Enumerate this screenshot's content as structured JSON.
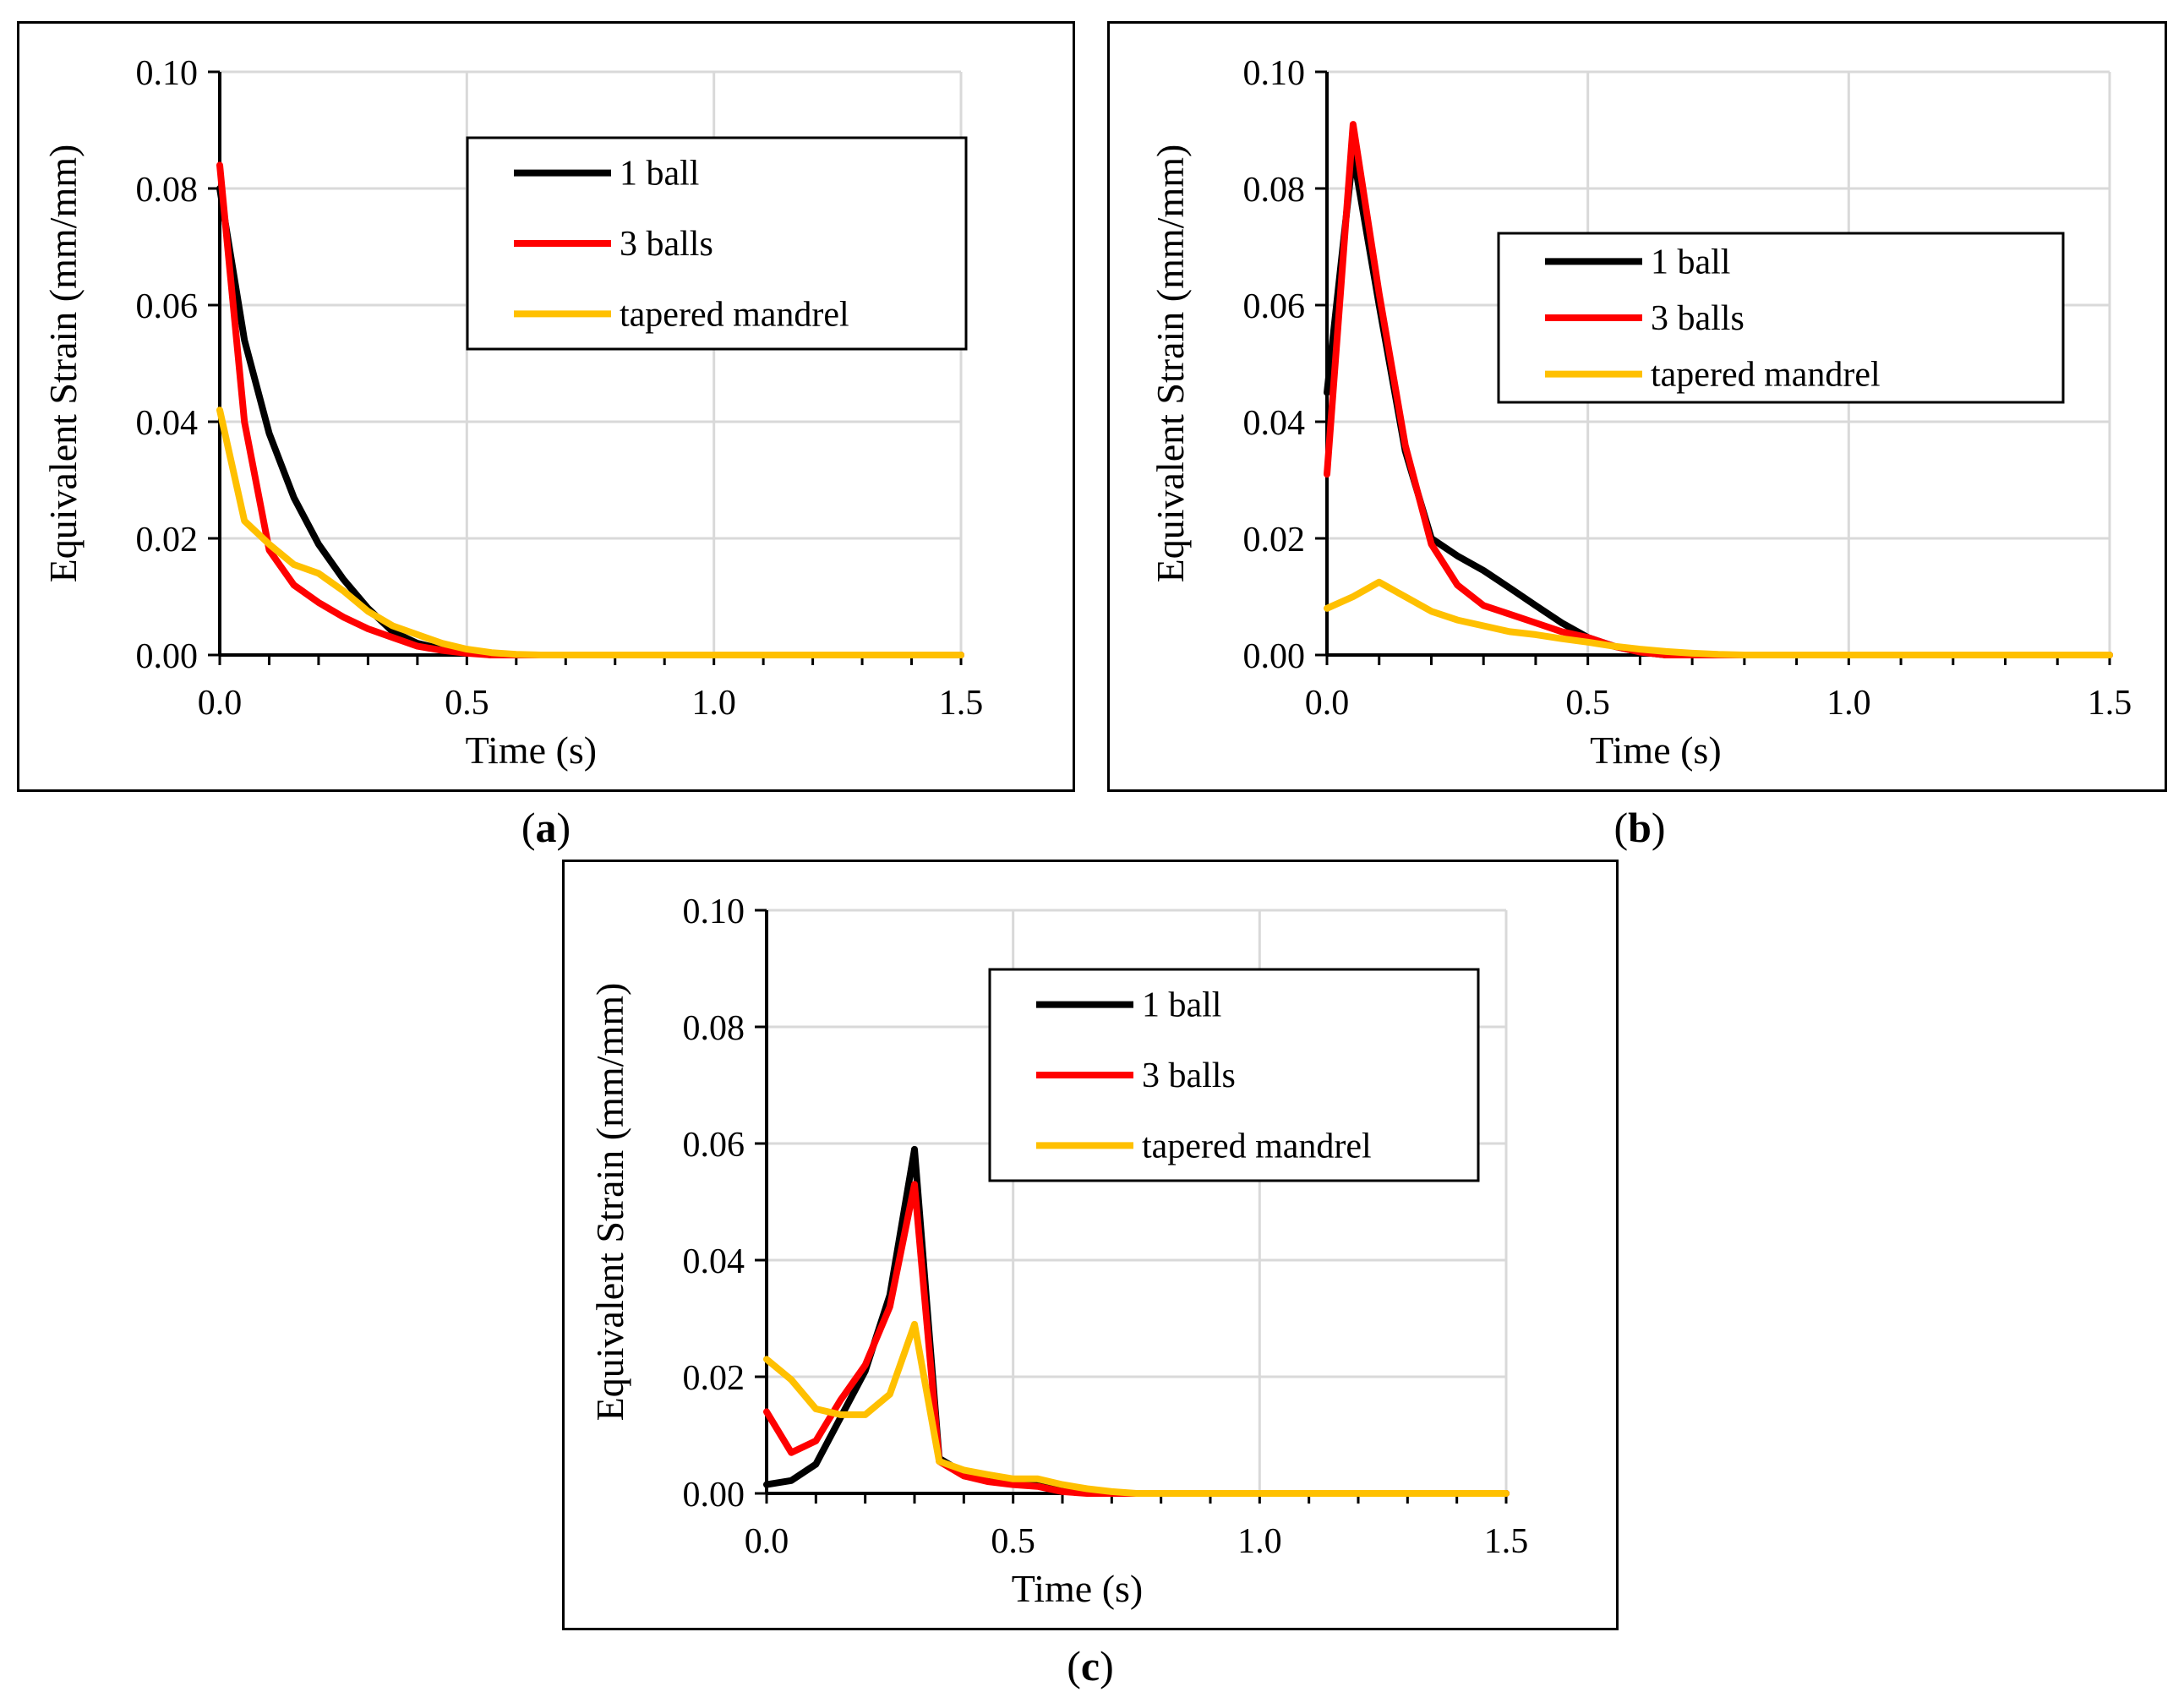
{
  "colors": {
    "one_ball": "#000000",
    "three_balls": "#ff0000",
    "tapered": "#ffc000",
    "grid": "#d9d9d9"
  },
  "chart_data": [
    {
      "id": "a",
      "type": "line",
      "caption_open": "(",
      "caption_letter": "a",
      "caption_close": ")",
      "xlabel": "Time (s)",
      "ylabel": "Equivalent Strain (mm/mm)",
      "xlim": [
        0,
        1.5
      ],
      "ylim": [
        0,
        0.1
      ],
      "xticks": [
        "0.0",
        "0.5",
        "1.0",
        "1.5"
      ],
      "yticks": [
        "0.00",
        "0.02",
        "0.04",
        "0.06",
        "0.08",
        "0.10"
      ],
      "legend": "top-right",
      "series": [
        {
          "name": "1 ball",
          "color": "#000000",
          "x": [
            0,
            0.05,
            0.1,
            0.15,
            0.2,
            0.25,
            0.3,
            0.35,
            0.4,
            0.45,
            0.5,
            0.55,
            0.6,
            0.65,
            0.7,
            0.75,
            0.8,
            0.85,
            0.9,
            0.95,
            1.0,
            1.05,
            1.1,
            1.15,
            1.2,
            1.25,
            1.3,
            1.35,
            1.4,
            1.45,
            1.5
          ],
          "y": [
            0.08,
            0.054,
            0.038,
            0.027,
            0.019,
            0.013,
            0.008,
            0.004,
            0.002,
            0.001,
            0.0005,
            0,
            0,
            0,
            0,
            0,
            0,
            0,
            0,
            0,
            0,
            0,
            0,
            0,
            0,
            0,
            0,
            0,
            0,
            0,
            0
          ]
        },
        {
          "name": "3 balls",
          "color": "#ff0000",
          "x": [
            0,
            0.05,
            0.1,
            0.15,
            0.2,
            0.25,
            0.3,
            0.35,
            0.4,
            0.45,
            0.5,
            0.55,
            0.6,
            0.65,
            0.7,
            0.75,
            0.8,
            0.85,
            0.9,
            0.95,
            1.0,
            1.05,
            1.1,
            1.15,
            1.2,
            1.25,
            1.3,
            1.35,
            1.4,
            1.45,
            1.5
          ],
          "y": [
            0.084,
            0.04,
            0.018,
            0.012,
            0.009,
            0.0065,
            0.0045,
            0.003,
            0.0015,
            0.0008,
            0.0003,
            0,
            0,
            0,
            0,
            0,
            0,
            0,
            0,
            0,
            0,
            0,
            0,
            0,
            0,
            0,
            0,
            0,
            0,
            0,
            0
          ]
        },
        {
          "name": "tapered mandrel",
          "color": "#ffc000",
          "x": [
            0,
            0.05,
            0.1,
            0.15,
            0.2,
            0.25,
            0.3,
            0.35,
            0.4,
            0.45,
            0.5,
            0.55,
            0.6,
            0.65,
            0.7,
            0.75,
            0.8,
            0.85,
            0.9,
            0.95,
            1.0,
            1.05,
            1.1,
            1.15,
            1.2,
            1.25,
            1.3,
            1.35,
            1.4,
            1.45,
            1.5
          ],
          "y": [
            0.042,
            0.023,
            0.019,
            0.0155,
            0.014,
            0.011,
            0.0075,
            0.005,
            0.0035,
            0.002,
            0.001,
            0.0004,
            0.0001,
            0,
            0,
            0,
            0,
            0,
            0,
            0,
            0,
            0,
            0,
            0,
            0,
            0,
            0,
            0,
            0,
            0,
            0
          ]
        }
      ]
    },
    {
      "id": "b",
      "type": "line",
      "caption_open": "(",
      "caption_letter": "b",
      "caption_close": ")",
      "xlabel": "Time (s)",
      "ylabel": "Equivalent Strain (mm/mm)",
      "xlim": [
        0,
        1.5
      ],
      "ylim": [
        0,
        0.1
      ],
      "xticks": [
        "0.0",
        "0.5",
        "1.0",
        "1.5"
      ],
      "yticks": [
        "0.00",
        "0.02",
        "0.04",
        "0.06",
        "0.08",
        "0.10"
      ],
      "legend": "top-right",
      "series": [
        {
          "name": "1 ball",
          "color": "#000000",
          "x": [
            0,
            0.05,
            0.1,
            0.15,
            0.2,
            0.25,
            0.3,
            0.35,
            0.4,
            0.45,
            0.5,
            0.55,
            0.6,
            0.65,
            0.7,
            0.75,
            0.8,
            0.85,
            0.9,
            0.95,
            1.0,
            1.05,
            1.1,
            1.15,
            1.2,
            1.25,
            1.3,
            1.35,
            1.4,
            1.45,
            1.5
          ],
          "y": [
            0.045,
            0.086,
            0.06,
            0.035,
            0.02,
            0.017,
            0.0145,
            0.0115,
            0.0085,
            0.0055,
            0.003,
            0.0015,
            0.0005,
            0,
            0,
            0,
            0,
            0,
            0,
            0,
            0,
            0,
            0,
            0,
            0,
            0,
            0,
            0,
            0,
            0,
            0
          ]
        },
        {
          "name": "3 balls",
          "color": "#ff0000",
          "x": [
            0,
            0.05,
            0.1,
            0.15,
            0.2,
            0.25,
            0.3,
            0.35,
            0.4,
            0.45,
            0.5,
            0.55,
            0.6,
            0.65,
            0.7,
            0.75,
            0.8,
            0.85,
            0.9,
            0.95,
            1.0,
            1.05,
            1.1,
            1.15,
            1.2,
            1.25,
            1.3,
            1.35,
            1.4,
            1.45,
            1.5
          ],
          "y": [
            0.031,
            0.091,
            0.062,
            0.036,
            0.019,
            0.012,
            0.0085,
            0.007,
            0.0055,
            0.004,
            0.003,
            0.0015,
            0.0005,
            0,
            0,
            0,
            0,
            0,
            0,
            0,
            0,
            0,
            0,
            0,
            0,
            0,
            0,
            0,
            0,
            0,
            0
          ]
        },
        {
          "name": "tapered mandrel",
          "color": "#ffc000",
          "x": [
            0,
            0.05,
            0.1,
            0.15,
            0.2,
            0.25,
            0.3,
            0.35,
            0.4,
            0.45,
            0.5,
            0.55,
            0.6,
            0.65,
            0.7,
            0.75,
            0.8,
            0.85,
            0.9,
            0.95,
            1.0,
            1.05,
            1.1,
            1.15,
            1.2,
            1.25,
            1.3,
            1.35,
            1.4,
            1.45,
            1.5
          ],
          "y": [
            0.008,
            0.01,
            0.0125,
            0.01,
            0.0075,
            0.006,
            0.005,
            0.004,
            0.0035,
            0.0028,
            0.0022,
            0.0015,
            0.001,
            0.0006,
            0.0003,
            0.0001,
            0,
            0,
            0,
            0,
            0,
            0,
            0,
            0,
            0,
            0,
            0,
            0,
            0,
            0,
            0
          ]
        }
      ]
    },
    {
      "id": "c",
      "type": "line",
      "caption_open": "(",
      "caption_letter": "c",
      "caption_close": ")",
      "xlabel": "Time (s)",
      "ylabel": "Equivalent Strain (mm/mm)",
      "xlim": [
        0,
        1.5
      ],
      "ylim": [
        0,
        0.1
      ],
      "xticks": [
        "0.0",
        "0.5",
        "1.0",
        "1.5"
      ],
      "yticks": [
        "0.00",
        "0.02",
        "0.04",
        "0.06",
        "0.08",
        "0.10"
      ],
      "legend": "top-right",
      "series": [
        {
          "name": "1 ball",
          "color": "#000000",
          "x": [
            0,
            0.05,
            0.1,
            0.15,
            0.2,
            0.25,
            0.3,
            0.35,
            0.4,
            0.45,
            0.5,
            0.55,
            0.6,
            0.65,
            0.7,
            0.75,
            0.8,
            0.85,
            0.9,
            0.95,
            1.0,
            1.05,
            1.1,
            1.15,
            1.2,
            1.25,
            1.3,
            1.35,
            1.4,
            1.45,
            1.5
          ],
          "y": [
            0.0015,
            0.0022,
            0.005,
            0.013,
            0.021,
            0.034,
            0.059,
            0.006,
            0.0035,
            0.0025,
            0.002,
            0.0018,
            0.001,
            0.0005,
            0,
            0,
            0,
            0,
            0,
            0,
            0,
            0,
            0,
            0,
            0,
            0,
            0,
            0,
            0,
            0,
            0
          ]
        },
        {
          "name": "3 balls",
          "color": "#ff0000",
          "x": [
            0,
            0.05,
            0.1,
            0.15,
            0.2,
            0.25,
            0.3,
            0.35,
            0.4,
            0.45,
            0.5,
            0.55,
            0.6,
            0.65,
            0.7,
            0.75,
            0.8,
            0.85,
            0.9,
            0.95,
            1.0,
            1.05,
            1.1,
            1.15,
            1.2,
            1.25,
            1.3,
            1.35,
            1.4,
            1.45,
            1.5
          ],
          "y": [
            0.014,
            0.007,
            0.009,
            0.016,
            0.022,
            0.032,
            0.053,
            0.0055,
            0.003,
            0.002,
            0.0015,
            0.0012,
            0.0003,
            0,
            0,
            0,
            0,
            0,
            0,
            0,
            0,
            0,
            0,
            0,
            0,
            0,
            0,
            0,
            0,
            0,
            0
          ]
        },
        {
          "name": "tapered mandrel",
          "color": "#ffc000",
          "x": [
            0,
            0.05,
            0.1,
            0.15,
            0.2,
            0.25,
            0.3,
            0.35,
            0.4,
            0.45,
            0.5,
            0.55,
            0.6,
            0.65,
            0.7,
            0.75,
            0.8,
            0.85,
            0.9,
            0.95,
            1.0,
            1.05,
            1.1,
            1.15,
            1.2,
            1.25,
            1.3,
            1.35,
            1.4,
            1.45,
            1.5
          ],
          "y": [
            0.023,
            0.0195,
            0.0145,
            0.0135,
            0.0135,
            0.017,
            0.029,
            0.0055,
            0.004,
            0.0032,
            0.0025,
            0.0025,
            0.0015,
            0.0008,
            0.0003,
            0,
            0,
            0,
            0,
            0,
            0,
            0,
            0,
            0,
            0,
            0,
            0,
            0,
            0,
            0,
            0
          ]
        }
      ]
    }
  ]
}
